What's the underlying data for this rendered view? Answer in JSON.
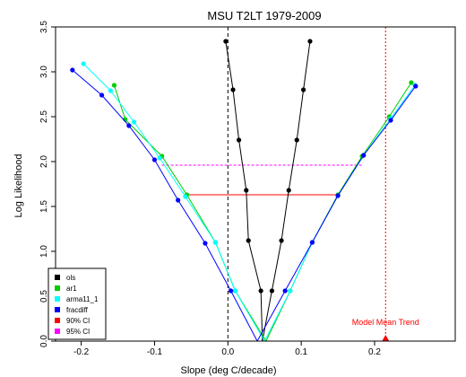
{
  "chart_data": {
    "type": "line",
    "title": "MSU  T2LT 1979-2009",
    "xlabel": "Slope (deg C/decade)",
    "ylabel": "Log Likelihood",
    "xlim": [
      -0.235,
      0.31
    ],
    "ylim": [
      0.0,
      3.5
    ],
    "x_ticks": [
      -0.2,
      -0.1,
      0.0,
      0.1,
      0.2
    ],
    "x_tick_labels": [
      "-0.2",
      "-0.1",
      "0.0",
      "0.1",
      "0.2"
    ],
    "y_ticks": [
      0.0,
      0.5,
      1.0,
      1.5,
      2.0,
      2.5,
      3.0,
      3.5
    ],
    "y_tick_labels": [
      "0.0",
      "0.5",
      "1.0",
      "1.5",
      "2.0",
      "2.5",
      "3.0",
      "3.5"
    ],
    "grid": false,
    "legend_position": "bottom-left",
    "series": [
      {
        "name": "ols",
        "color": "#000000",
        "left": [
          [
            0.047,
            0.0
          ],
          [
            0.045,
            0.56
          ],
          [
            0.028,
            1.12
          ],
          [
            0.025,
            1.68
          ],
          [
            0.015,
            2.24
          ],
          [
            0.007,
            2.8
          ],
          [
            -0.003,
            3.34
          ]
        ],
        "right": [
          [
            0.047,
            0.0
          ],
          [
            0.06,
            0.56
          ],
          [
            0.073,
            1.12
          ],
          [
            0.083,
            1.68
          ],
          [
            0.094,
            2.24
          ],
          [
            0.103,
            2.8
          ],
          [
            0.112,
            3.34
          ]
        ]
      },
      {
        "name": "ar1",
        "color": "#00cc00",
        "left": [
          [
            0.052,
            0.0
          ],
          [
            0.01,
            0.56
          ],
          [
            -0.017,
            1.1
          ],
          [
            -0.056,
            1.63
          ],
          [
            -0.09,
            2.06
          ],
          [
            -0.14,
            2.47
          ],
          [
            -0.155,
            2.85
          ]
        ],
        "right": [
          [
            0.052,
            0.0
          ],
          [
            0.085,
            0.56
          ],
          [
            0.115,
            1.1
          ],
          [
            0.15,
            1.63
          ],
          [
            0.183,
            2.06
          ],
          [
            0.22,
            2.5
          ],
          [
            0.25,
            2.88
          ]
        ]
      },
      {
        "name": "arma11_1",
        "color": "#00ffff",
        "left": [
          [
            0.05,
            0.0
          ],
          [
            0.01,
            0.56
          ],
          [
            -0.017,
            1.1
          ],
          [
            -0.058,
            1.61
          ],
          [
            -0.093,
            2.04
          ],
          [
            -0.128,
            2.44
          ],
          [
            -0.16,
            2.79
          ],
          [
            -0.197,
            3.09
          ]
        ],
        "right": [
          [
            0.05,
            0.0
          ],
          [
            0.085,
            0.56
          ],
          [
            0.115,
            1.1
          ],
          [
            0.15,
            1.62
          ],
          [
            0.185,
            2.07
          ],
          [
            0.222,
            2.48
          ],
          [
            0.255,
            2.85
          ]
        ]
      },
      {
        "name": "fracdiff",
        "color": "#0000ff",
        "left": [
          [
            0.04,
            0.0
          ],
          [
            0.004,
            0.56
          ],
          [
            -0.031,
            1.09
          ],
          [
            -0.068,
            1.57
          ],
          [
            -0.1,
            2.02
          ],
          [
            -0.135,
            2.4
          ],
          [
            -0.172,
            2.74
          ],
          [
            -0.212,
            3.02
          ]
        ],
        "right": [
          [
            0.04,
            0.0
          ],
          [
            0.078,
            0.56
          ],
          [
            0.115,
            1.1
          ],
          [
            0.15,
            1.62
          ],
          [
            0.185,
            2.07
          ],
          [
            0.222,
            2.46
          ],
          [
            0.256,
            2.84
          ]
        ]
      }
    ],
    "ci_lines": [
      {
        "name": "90% CI",
        "color": "#ff0000",
        "y": 1.63,
        "x": [
          -0.058,
          0.152
        ]
      },
      {
        "name": "95% CI",
        "color": "#ff00ff",
        "y": 1.96,
        "x": [
          -0.09,
          0.183
        ]
      }
    ],
    "reference_lines": [
      {
        "orientation": "vertical",
        "x": 0.0,
        "color": "#000000",
        "style": "dashed"
      },
      {
        "orientation": "vertical",
        "x": 0.215,
        "color": "#ff0000",
        "style": "dotted"
      }
    ],
    "annotation": {
      "text": "Model Mean Trend",
      "x": 0.215,
      "y": 0.0,
      "color": "#ff0000"
    }
  }
}
